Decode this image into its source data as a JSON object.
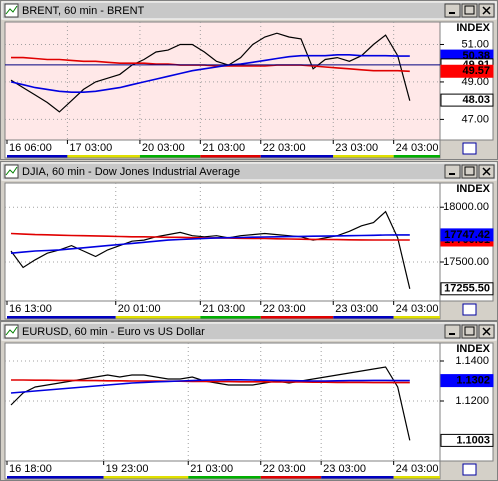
{
  "chart_data": [
    {
      "type": "line",
      "title": "BRENT, 60 min - BRENT",
      "axis_label": "INDEX",
      "background": "#ffe8e8",
      "grid": true,
      "categories": [
        "16 06:00",
        null,
        null,
        null,
        null,
        "17 03:00",
        null,
        null,
        null,
        null,
        null,
        "20 03:00",
        null,
        null,
        null,
        null,
        "21 03:00",
        null,
        null,
        null,
        null,
        "22 03:00",
        null,
        null,
        null,
        null,
        null,
        "23 03:00",
        null,
        null,
        null,
        null,
        "24 03:00",
        null,
        null,
        null
      ],
      "ylim": [
        45.9,
        52.2
      ],
      "yticks": [
        {
          "value": 51,
          "label": "51.00"
        },
        {
          "value": 49,
          "label": "49.00"
        },
        {
          "value": 47,
          "label": "47.00"
        }
      ],
      "series": [
        {
          "color": "#000000",
          "values": [
            49.1,
            48.7,
            48.3,
            47.9,
            47.4,
            48.0,
            48.6,
            49.0,
            49.2,
            49.4,
            49.9,
            50.2,
            50.6,
            50.7,
            51.0,
            51.0,
            50.6,
            50.1,
            49.9,
            50.3,
            51.0,
            51.4,
            51.6,
            51.4,
            51.3,
            49.7,
            50.2,
            50.3,
            50.1,
            50.4,
            51.0,
            51.5,
            50.4,
            48.0,
            null,
            null
          ]
        },
        {
          "color": "#e00000",
          "values": [
            50.3,
            50.3,
            50.25,
            50.2,
            50.2,
            50.15,
            50.1,
            50.1,
            50.05,
            50.0,
            50.0,
            50.0,
            49.95,
            49.95,
            49.9,
            49.9,
            49.9,
            49.85,
            49.85,
            49.85,
            49.85,
            49.85,
            49.9,
            49.9,
            49.9,
            49.85,
            49.8,
            49.75,
            49.7,
            49.65,
            49.6,
            49.6,
            49.6,
            49.57,
            null,
            null
          ]
        },
        {
          "color": "#0000e0",
          "values": [
            49.0,
            48.85,
            48.7,
            48.6,
            48.5,
            48.45,
            48.45,
            48.5,
            48.6,
            48.7,
            48.85,
            49.0,
            49.15,
            49.3,
            49.45,
            49.6,
            49.7,
            49.8,
            49.9,
            49.95,
            50.05,
            50.15,
            50.25,
            50.35,
            50.4,
            50.4,
            50.4,
            50.45,
            50.45,
            50.4,
            50.4,
            50.4,
            50.38,
            50.38,
            null,
            null
          ]
        }
      ],
      "tags": [
        {
          "value": 50.38,
          "color": "#0000ff"
        },
        {
          "value": 49.91,
          "color": "#ffffff",
          "line": true
        },
        {
          "value": 49.57,
          "color": "#ff0000"
        },
        {
          "value": 48.03,
          "color": "#ffffff"
        }
      ]
    },
    {
      "type": "line",
      "title": "DJIA, 60 min - Dow Jones Industrial Average",
      "axis_label": "INDEX",
      "background": "#ffffff",
      "grid": true,
      "categories": [
        "16 13:00",
        null,
        null,
        null,
        null,
        null,
        null,
        null,
        null,
        "20 01:00",
        null,
        null,
        null,
        null,
        null,
        null,
        "21 03:00",
        null,
        null,
        null,
        null,
        "22 03:00",
        null,
        null,
        null,
        null,
        null,
        "23 03:00",
        null,
        null,
        null,
        null,
        "24 03:00",
        null,
        null,
        null
      ],
      "ylim": [
        17144,
        18221
      ],
      "yticks": [
        {
          "value": 18000,
          "label": "18000.00"
        },
        {
          "value": 17500,
          "label": "17500.00"
        }
      ],
      "series": [
        {
          "color": "#000000",
          "values": [
            17600,
            17450,
            17520,
            17580,
            17610,
            17650,
            17600,
            17550,
            17610,
            17650,
            17690,
            17700,
            17730,
            17750,
            17770,
            17740,
            17730,
            17740,
            17720,
            17740,
            17750,
            17760,
            17750,
            17740,
            17730,
            17700,
            17720,
            17740,
            17780,
            17830,
            17860,
            17960,
            17720,
            17255.5,
            null,
            null
          ]
        },
        {
          "color": "#e00000",
          "values": [
            17760,
            17755,
            17750,
            17748,
            17745,
            17742,
            17740,
            17738,
            17735,
            17733,
            17730,
            17730,
            17728,
            17725,
            17725,
            17722,
            17720,
            17720,
            17718,
            17716,
            17715,
            17714,
            17712,
            17710,
            17708,
            17706,
            17705,
            17704,
            17703,
            17702,
            17701,
            17701,
            17700.61,
            17700.61,
            null,
            null
          ]
        },
        {
          "color": "#0000e0",
          "values": [
            17580,
            17590,
            17600,
            17605,
            17610,
            17620,
            17630,
            17640,
            17650,
            17660,
            17670,
            17680,
            17690,
            17700,
            17705,
            17710,
            17715,
            17720,
            17722,
            17724,
            17726,
            17728,
            17730,
            17732,
            17734,
            17735,
            17736,
            17738,
            17740,
            17742,
            17744,
            17746,
            17747.42,
            17747.42,
            null,
            null
          ]
        }
      ],
      "tags": [
        {
          "value": 17700.61,
          "color": "#ff0000"
        },
        {
          "value": 17747.42,
          "color": "#0000ff"
        },
        {
          "value": 17255.5,
          "label": "17255.50",
          "color": "#ffffff"
        }
      ]
    },
    {
      "type": "line",
      "title": "EURUSD, 60 min - Euro vs US Dollar",
      "axis_label": "INDEX",
      "background": "#ffffff",
      "grid": true,
      "categories": [
        "16 18:00",
        null,
        null,
        null,
        null,
        null,
        null,
        null,
        "19 23:00",
        null,
        null,
        null,
        null,
        null,
        null,
        "21 03:00",
        null,
        null,
        null,
        null,
        null,
        "22 03:00",
        null,
        null,
        null,
        null,
        "23 03:00",
        null,
        null,
        null,
        null,
        null,
        "24 03:00",
        null,
        null,
        null
      ],
      "ylim": [
        1.09,
        1.149
      ],
      "yticks": [
        {
          "value": 1.14,
          "label": "1.1400"
        },
        {
          "value": 1.12,
          "label": "1.1200"
        }
      ],
      "series": [
        {
          "color": "#000000",
          "values": [
            1.118,
            1.124,
            1.127,
            1.128,
            1.129,
            1.13,
            1.131,
            1.132,
            1.133,
            1.132,
            1.133,
            1.133,
            1.132,
            1.131,
            1.131,
            1.132,
            1.13,
            1.129,
            1.128,
            1.128,
            1.128,
            1.129,
            1.13,
            1.129,
            1.13,
            1.131,
            1.132,
            1.133,
            1.134,
            1.135,
            1.136,
            1.137,
            1.127,
            1.1003,
            null,
            null
          ]
        },
        {
          "color": "#e00000",
          "values": [
            1.1305,
            1.1305,
            1.1304,
            1.1304,
            1.1303,
            1.1303,
            1.1302,
            1.1302,
            1.1301,
            1.1301,
            1.13,
            1.13,
            1.13,
            1.1299,
            1.1299,
            1.1298,
            1.1298,
            1.1297,
            1.1297,
            1.1296,
            1.1296,
            1.1296,
            1.1295,
            1.1295,
            1.1295,
            1.1294,
            1.1294,
            1.1293,
            1.1293,
            1.1293,
            1.1292,
            1.1292,
            1.1292,
            1.1292,
            null,
            null
          ]
        },
        {
          "color": "#0000e0",
          "values": [
            1.124,
            1.1245,
            1.125,
            1.1255,
            1.126,
            1.1265,
            1.127,
            1.1275,
            1.128,
            1.1285,
            1.129,
            1.1293,
            1.1296,
            1.1298,
            1.13,
            1.1302,
            1.1304,
            1.1305,
            1.1306,
            1.1306,
            1.1305,
            1.1304,
            1.1303,
            1.1302,
            1.1301,
            1.13,
            1.13,
            1.1301,
            1.1302,
            1.1302,
            1.1303,
            1.1303,
            1.1302,
            1.1302,
            null,
            null
          ]
        }
      ],
      "tags": [
        {
          "value": 1.1302,
          "color": "#0000ff"
        },
        {
          "value": 1.1003,
          "color": "#ffffff"
        }
      ]
    }
  ]
}
